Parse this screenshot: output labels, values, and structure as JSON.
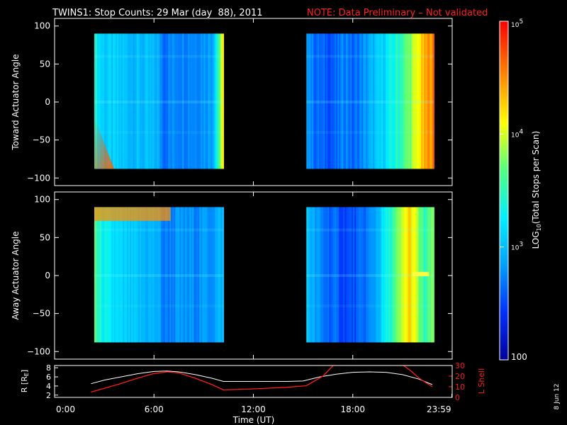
{
  "header": {
    "title": "TWINS1: Stop Counts: 29 Mar (day  88), 2011",
    "note": "NOTE: Data Preliminary – Not validated"
  },
  "date_stamp": "8 Jun 12",
  "colors": {
    "background": "#000000",
    "axis": "#ffffff",
    "note": "#ff2020",
    "r_line": "#ffffff",
    "lshell_line": "#ff1a1a"
  },
  "colorbar": {
    "label": "LOG10(Total Stops per Scan)",
    "label_main": "LOG",
    "label_sub": "10",
    "label_rest": "(Total Stops per Scan)",
    "scale": "log",
    "range": [
      100,
      100000
    ],
    "ticks": [
      {
        "base": "10",
        "exp": "5",
        "value": 100000
      },
      {
        "base": "10",
        "exp": "4",
        "value": 10000
      },
      {
        "base": "10",
        "exp": "3",
        "value": 1000
      },
      {
        "plain": "100",
        "value": 100
      }
    ],
    "colormap": [
      "#00009a",
      "#0030ff",
      "#00a0ff",
      "#00f0ff",
      "#50ff80",
      "#ffff00",
      "#ff8000",
      "#ff0000"
    ]
  },
  "chart_data": [
    {
      "type": "heatmap",
      "panel": "toward",
      "title": "",
      "ylabel": "Toward Actuator Angle",
      "xlabel": "",
      "xlim": [
        0,
        24
      ],
      "ylim": [
        -110,
        110
      ],
      "yticks": [
        -100,
        -50,
        0,
        50,
        100
      ],
      "ytick_labels": [
        "−100",
        "−50",
        "0",
        "50",
        "100"
      ],
      "data_blocks": [
        {
          "start_ut": 2.4,
          "end_ut": 10.2,
          "angle_range": [
            -88,
            90
          ]
        },
        {
          "start_ut": 15.2,
          "end_ut": 22.9,
          "angle_range": [
            -88,
            90
          ]
        }
      ],
      "time_profile_log10": [
        [
          2.4,
          3.6
        ],
        [
          2.5,
          3.4
        ],
        [
          2.7,
          3.2
        ],
        [
          3.0,
          3.1
        ],
        [
          4.0,
          3.05
        ],
        [
          5.0,
          3.0
        ],
        [
          6.2,
          2.95
        ],
        [
          6.6,
          2.7
        ],
        [
          7.4,
          2.8
        ],
        [
          8.5,
          2.8
        ],
        [
          9.5,
          2.9
        ],
        [
          9.8,
          3.4
        ],
        [
          10.0,
          3.8
        ],
        [
          10.2,
          4.2
        ],
        [
          15.2,
          3.0
        ],
        [
          15.6,
          2.7
        ],
        [
          16.2,
          2.6
        ],
        [
          17.0,
          2.6
        ],
        [
          17.6,
          2.8
        ],
        [
          18.0,
          2.6
        ],
        [
          19.0,
          2.9
        ],
        [
          20.0,
          3.2
        ],
        [
          20.8,
          3.5
        ],
        [
          21.6,
          3.9
        ],
        [
          22.2,
          4.3
        ],
        [
          22.6,
          4.5
        ],
        [
          22.9,
          4.6
        ]
      ]
    },
    {
      "type": "heatmap",
      "panel": "away",
      "title": "",
      "ylabel": "Away Actuator Angle",
      "xlabel": "",
      "xlim": [
        0,
        24
      ],
      "ylim": [
        -110,
        110
      ],
      "yticks": [
        -100,
        -50,
        0,
        50,
        100
      ],
      "ytick_labels": [
        "−100",
        "−50",
        "0",
        "50",
        "100"
      ],
      "data_blocks": [
        {
          "start_ut": 2.4,
          "end_ut": 10.2,
          "angle_range": [
            -88,
            90
          ]
        },
        {
          "start_ut": 15.2,
          "end_ut": 22.9,
          "angle_range": [
            -88,
            90
          ]
        }
      ],
      "time_profile_log10": [
        [
          2.4,
          3.8
        ],
        [
          2.6,
          3.5
        ],
        [
          3.0,
          3.3
        ],
        [
          4.0,
          3.1
        ],
        [
          5.0,
          3.0
        ],
        [
          6.2,
          2.95
        ],
        [
          6.6,
          2.7
        ],
        [
          7.4,
          2.8
        ],
        [
          8.5,
          2.8
        ],
        [
          9.5,
          2.85
        ],
        [
          10.2,
          3.0
        ],
        [
          15.2,
          3.1
        ],
        [
          15.6,
          2.9
        ],
        [
          16.2,
          2.7
        ],
        [
          17.0,
          2.6
        ],
        [
          17.6,
          2.5
        ],
        [
          18.5,
          2.6
        ],
        [
          19.2,
          2.8
        ],
        [
          20.0,
          3.3
        ],
        [
          20.8,
          3.8
        ],
        [
          21.4,
          4.3
        ],
        [
          21.8,
          4.0
        ],
        [
          22.3,
          3.5
        ],
        [
          22.9,
          3.8
        ]
      ]
    },
    {
      "type": "line",
      "panel": "orbit",
      "title": "",
      "xlabel": "Time (UT)",
      "ylabel": "R [RE]",
      "ylabel_main": "R [R",
      "ylabel_sub": "E",
      "ylabel_end": "]",
      "ylabel_right": "L Shell",
      "xlim": [
        0,
        24
      ],
      "xticks": [
        0,
        6,
        12,
        18,
        23.98
      ],
      "xtick_labels": [
        "0:00",
        "6:00",
        "12:00",
        "18:00",
        "23:59"
      ],
      "ylim": [
        1.5,
        8.5
      ],
      "yticks": [
        2,
        4,
        6,
        8
      ],
      "ytick_labels": [
        "2",
        "4",
        "6",
        "8"
      ],
      "ylim_right": [
        0,
        30
      ],
      "yticks_right": [
        0,
        10,
        20,
        30
      ],
      "ytick_labels_right": [
        "0",
        "10",
        "20",
        "30"
      ],
      "series": [
        {
          "axis": "left",
          "x": [
            2.2,
            3.0,
            4.0,
            5.0,
            6.0,
            6.8,
            7.5,
            8.5,
            9.5,
            10.2,
            11.0,
            12.0,
            13.0,
            14.0,
            15.0,
            16.0,
            17.0,
            18.0,
            19.0,
            20.0,
            21.0,
            22.0,
            22.8
          ],
          "y": [
            4.5,
            5.3,
            6.0,
            6.7,
            7.2,
            7.3,
            7.1,
            6.5,
            5.7,
            5.0,
            5.0,
            5.0,
            5.0,
            5.0,
            5.1,
            6.0,
            6.6,
            7.0,
            7.1,
            7.0,
            6.5,
            5.5,
            4.3
          ]
        },
        {
          "axis": "right",
          "x": [
            2.2,
            3.0,
            4.0,
            5.0,
            6.0,
            6.8,
            7.5,
            8.5,
            9.5,
            10.2,
            12.0,
            14.0,
            15.2,
            16.2,
            17.0,
            20.8,
            21.5,
            22.0,
            22.8
          ],
          "y": [
            5,
            8.5,
            13,
            18,
            22.5,
            24,
            23,
            18,
            12,
            7,
            8,
            9.5,
            11,
            20,
            33,
            33,
            25,
            18,
            10
          ]
        }
      ]
    }
  ]
}
